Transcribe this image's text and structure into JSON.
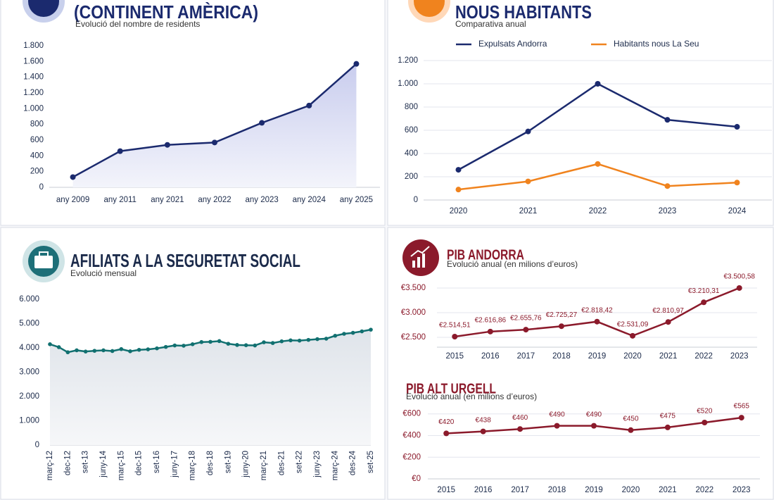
{
  "chart_data": [
    {
      "type": "line",
      "title": "(CONTINENT AMÈRICA)",
      "subtitle": "Evolució del nombre de residents",
      "categories": [
        "any 2009",
        "any 2011",
        "any 2021",
        "any 2022",
        "any 2023",
        "any 2024",
        "any 2025"
      ],
      "values": [
        130,
        460,
        540,
        570,
        820,
        1040,
        1570
      ],
      "color": "#1b2a6e",
      "area": true,
      "grid": false,
      "ylim": [
        0,
        1800
      ],
      "yticks": [
        0,
        200,
        400,
        600,
        800,
        {
          "value": 1000,
          "label": "1.000"
        },
        {
          "value": 1200,
          "label": "1.200"
        },
        {
          "value": 1400,
          "label": "1.400"
        },
        {
          "value": 1600,
          "label": "1.600"
        },
        {
          "value": 1800,
          "label": "1.800"
        }
      ]
    },
    {
      "type": "line",
      "title": "NOUS HABITANTS",
      "subtitle": "Comparativa anual",
      "categories": [
        "2020",
        "2021",
        "2022",
        "2023",
        "2024"
      ],
      "series": [
        {
          "name": "Expulsats Andorra",
          "color": "#1b2a6e",
          "values": [
            260,
            590,
            1000,
            690,
            630
          ]
        },
        {
          "name": "Habitants nous La Seu",
          "color": "#f0831e",
          "values": [
            90,
            160,
            310,
            120,
            150
          ]
        }
      ],
      "legend": "top",
      "grid": true,
      "area": false,
      "ylim": [
        0,
        1200
      ],
      "yticks": [
        0,
        200,
        400,
        600,
        800,
        {
          "value": 1000,
          "label": "1.000"
        },
        {
          "value": 1200,
          "label": "1.200"
        }
      ]
    },
    {
      "type": "line",
      "title": "AFILIATS A LA SEGURETAT SOCIAL",
      "subtitle": "Evolució mensual",
      "categories": [
        "març-12",
        null,
        "dec-12",
        null,
        "set-13",
        null,
        "juny-14",
        null,
        "març-15",
        null,
        "dec-15",
        null,
        "set-16",
        null,
        "juny-17",
        null,
        "març-18",
        null,
        "des-18",
        null,
        "set-19",
        null,
        "juny-20",
        null,
        "març-21",
        null,
        "des-21",
        null,
        "set-22",
        null,
        "juny-23",
        null,
        "març-24",
        null,
        "des-24",
        null,
        "set-25"
      ],
      "values": [
        4150,
        4030,
        3820,
        3900,
        3850,
        3880,
        3900,
        3870,
        3950,
        3860,
        3920,
        3940,
        3980,
        4040,
        4100,
        4090,
        4150,
        4240,
        4250,
        4280,
        4170,
        4120,
        4110,
        4100,
        4230,
        4200,
        4270,
        4310,
        4300,
        4330,
        4360,
        4380,
        4500,
        4580,
        4620,
        4680,
        4750
      ],
      "color": "#117070",
      "area": true,
      "grid": false,
      "ylim": [
        0,
        6000
      ],
      "yticks": [
        0,
        {
          "value": 1000,
          "label": "1.000"
        },
        {
          "value": 2000,
          "label": "2.000"
        },
        {
          "value": 3000,
          "label": "3.000"
        },
        {
          "value": 4000,
          "label": "4.000"
        },
        {
          "value": 5000,
          "label": "5.000"
        },
        {
          "value": 6000,
          "label": "6.000"
        }
      ]
    },
    {
      "type": "line",
      "title": "PIB ANDORRA",
      "subtitle": "Evolució anual (en milions d’euros)",
      "categories": [
        "2015",
        "2016",
        "2017",
        "2018",
        "2019",
        "2020",
        "2021",
        "2022",
        "2023"
      ],
      "values": [
        2514.51,
        2616.86,
        2655.76,
        2725.27,
        2818.42,
        2531.09,
        2810.97,
        3210.31,
        3500.58
      ],
      "value_labels": [
        "€2.514,51",
        "€2.616,86",
        "€2.655,76",
        "€2.725,27",
        "€2.818,42",
        "€2.531,09",
        "€2.810,97",
        "€3.210,31",
        "€3.500,58"
      ],
      "color": "#8b1a2b",
      "area": false,
      "grid": true,
      "ylim": [
        2300,
        3700
      ],
      "yticks": [
        {
          "value": 2500,
          "label": "€2.500"
        },
        {
          "value": 3000,
          "label": "€3.000"
        },
        {
          "value": 3500,
          "label": "€3.500"
        }
      ]
    },
    {
      "type": "line",
      "title": "PIB ALT URGELL",
      "subtitle": "Evolució anual (en milions d’euros)",
      "categories": [
        "2015",
        "2016",
        "2017",
        "2018",
        "2019",
        "2020",
        "2021",
        "2022",
        "2023"
      ],
      "values": [
        420,
        438,
        460,
        490,
        490,
        450,
        475,
        520,
        565
      ],
      "value_labels": [
        "€420",
        "€438",
        "€460",
        "€490",
        "€490",
        "€450",
        "€475",
        "€520",
        "€565"
      ],
      "color": "#8b1a2b",
      "area": false,
      "grid": true,
      "ylim": [
        0,
        650
      ],
      "yticks": [
        {
          "value": 0,
          "label": "€0"
        },
        {
          "value": 200,
          "label": "€200"
        },
        {
          "value": 400,
          "label": "€400"
        },
        {
          "value": 600,
          "label": "€600"
        }
      ]
    }
  ]
}
